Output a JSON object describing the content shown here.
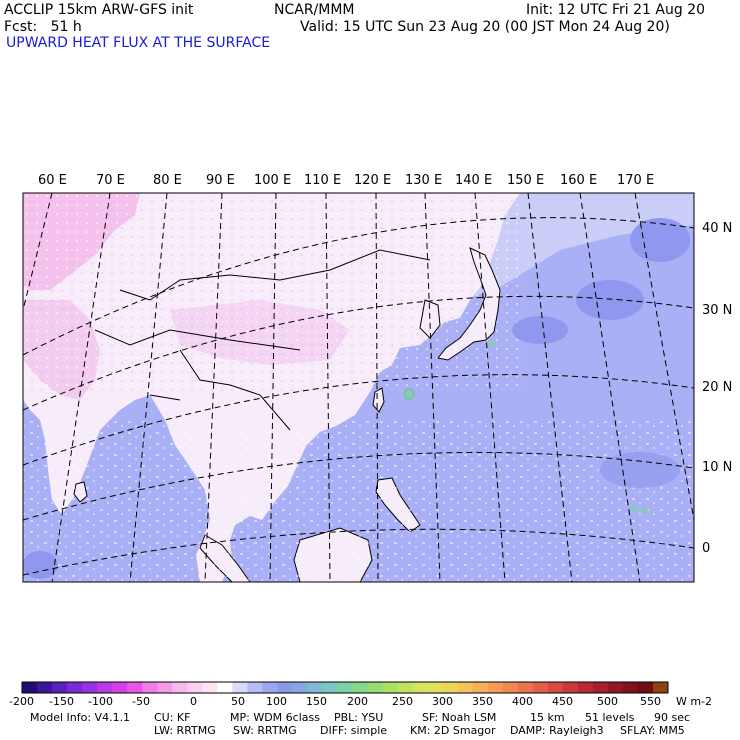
{
  "header": {
    "model": "ACCLIP 15km ARW-GFS init",
    "org": "NCAR/MMM",
    "init": "Init: 12 UTC Fri 21 Aug 20",
    "fcst": "Fcst:   51 h",
    "valid": "Valid: 15 UTC Sun 23 Aug 20 (00 JST Mon 24 Aug 20)",
    "field": "UPWARD HEAT FLUX AT THE SURFACE"
  },
  "map": {
    "lon_labels": [
      "60 E",
      "70 E",
      "80 E",
      "90 E",
      "100 E",
      "110 E",
      "120 E",
      "130 E",
      "140 E",
      "150 E",
      "160 E",
      "170 E"
    ],
    "lat_labels": [
      "40 N",
      "30 N",
      "20 N",
      "10 N",
      "0"
    ],
    "colors": {
      "ocean_fill": "#aab0f5",
      "land_fill": "#f6ecfa",
      "low_flux_pink": "#f5b8ee",
      "grid_line": "#000000"
    }
  },
  "colorbar": {
    "tick_labels": [
      "-200",
      "-150",
      "-100",
      "-50",
      "0",
      "50",
      "100",
      "150",
      "200",
      "250",
      "300",
      "350",
      "400",
      "450",
      "500",
      "550"
    ],
    "unit": "W m-2",
    "colors": [
      "#1e0f74",
      "#3b1899",
      "#5a22bd",
      "#7a2cd6",
      "#9a33e0",
      "#b93ae6",
      "#d63fe8",
      "#ea55e6",
      "#f27ae9",
      "#f59ae8",
      "#f7b8ec",
      "#fad0f1",
      "#fce4f6",
      "#ffffff",
      "#d8dcfa",
      "#b6bdf6",
      "#9ea6f1",
      "#8a9ae8",
      "#86a8e0",
      "#7fb9d2",
      "#7ac7bf",
      "#7cd2a4",
      "#83d88a",
      "#95dd74",
      "#abe066",
      "#c1e261",
      "#d5e35e",
      "#e5e05b",
      "#efd45a",
      "#f4c35a",
      "#f6b05a",
      "#f69c58",
      "#f38854",
      "#ed7350",
      "#e45f4b",
      "#d84b45",
      "#c8393e",
      "#b72b35",
      "#a4202c",
      "#901823",
      "#7e121b",
      "#6e0e15",
      "#8b4513"
    ]
  },
  "footer": {
    "line1": {
      "version": "Model Info: V4.1.1",
      "cu": "CU: KF",
      "mp": "MP: WDM 6class",
      "pbl": "PBL: YSU",
      "sf": "SF: Noah LSM",
      "res": "15 km",
      "levels": "51 levels",
      "dt": "90 sec"
    },
    "line2": {
      "lw": "LW: RRTMG",
      "sw": "SW: RRTMG",
      "diff": "DIFF: simple",
      "km": "KM: 2D Smagor",
      "damp": "DAMP: Rayleigh3",
      "sflay": "SFLAY: MM5"
    }
  }
}
